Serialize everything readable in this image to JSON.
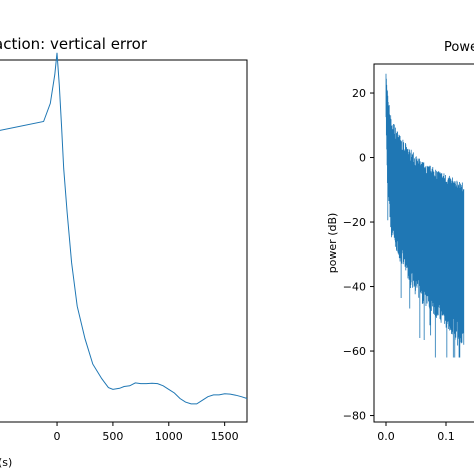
{
  "colors": {
    "series": "#1f77b4",
    "axes": "#000000",
    "background": "#ffffff"
  },
  "chart_data": [
    {
      "type": "line",
      "title": "action: vertical error",
      "xlabel": "(s)",
      "ylabel": "",
      "xlim": [
        -600,
        1700
      ],
      "ylim": [
        0,
        1
      ],
      "x_ticks": [
        0,
        500,
        1000,
        1500
      ],
      "x_tick_labels": [
        "0",
        "500",
        "1000",
        "1500"
      ],
      "grid": false,
      "legend": "none",
      "series": [
        {
          "x": [
            -600,
            -120,
            -60,
            -20,
            0,
            20,
            40,
            60,
            90,
            130,
            180,
            250,
            320,
            400,
            460,
            500,
            560,
            600,
            650,
            700,
            750,
            800,
            850,
            900,
            950,
            1000,
            1050,
            1100,
            1150,
            1200,
            1250,
            1300,
            1350,
            1400,
            1450,
            1500,
            1550,
            1600,
            1650,
            1700
          ],
          "y": [
            0.8,
            0.83,
            0.88,
            0.96,
            1.02,
            0.93,
            0.82,
            0.7,
            0.58,
            0.44,
            0.32,
            0.23,
            0.16,
            0.12,
            0.095,
            0.09,
            0.093,
            0.098,
            0.1,
            0.108,
            0.106,
            0.106,
            0.107,
            0.106,
            0.1,
            0.09,
            0.08,
            0.065,
            0.055,
            0.05,
            0.05,
            0.06,
            0.07,
            0.075,
            0.075,
            0.078,
            0.077,
            0.074,
            0.07,
            0.065
          ]
        }
      ]
    },
    {
      "type": "line",
      "title": "Powe",
      "xlabel": "",
      "ylabel": "power (dB)",
      "xlim": [
        -0.02,
        0.18
      ],
      "ylim": [
        -82,
        29
      ],
      "x_ticks": [
        0.0,
        0.1
      ],
      "x_tick_labels": [
        "0.0",
        "0.1"
      ],
      "y_ticks": [
        20,
        0,
        -20,
        -40,
        -60,
        -80
      ],
      "y_tick_labels": [
        "20",
        "0",
        "−20",
        "−40",
        "−60",
        "−80"
      ],
      "grid": false,
      "legend": "none",
      "series": [
        {
          "x": [
            0.0,
            0.002,
            0.005,
            0.01,
            0.02,
            0.03,
            0.04,
            0.05,
            0.06,
            0.07,
            0.08,
            0.09,
            0.1,
            0.11,
            0.12,
            0.13
          ],
          "upper": [
            28,
            20,
            15,
            10,
            6,
            3,
            1,
            -1,
            -3,
            -4,
            -5,
            -6,
            -7,
            -8,
            -9,
            -10
          ],
          "lower": [
            10,
            -5,
            -15,
            -22,
            -28,
            -32,
            -36,
            -40,
            -42,
            -44,
            -46,
            -48,
            -50,
            -52,
            -54,
            -56
          ],
          "spikes_min": -62
        }
      ]
    }
  ]
}
